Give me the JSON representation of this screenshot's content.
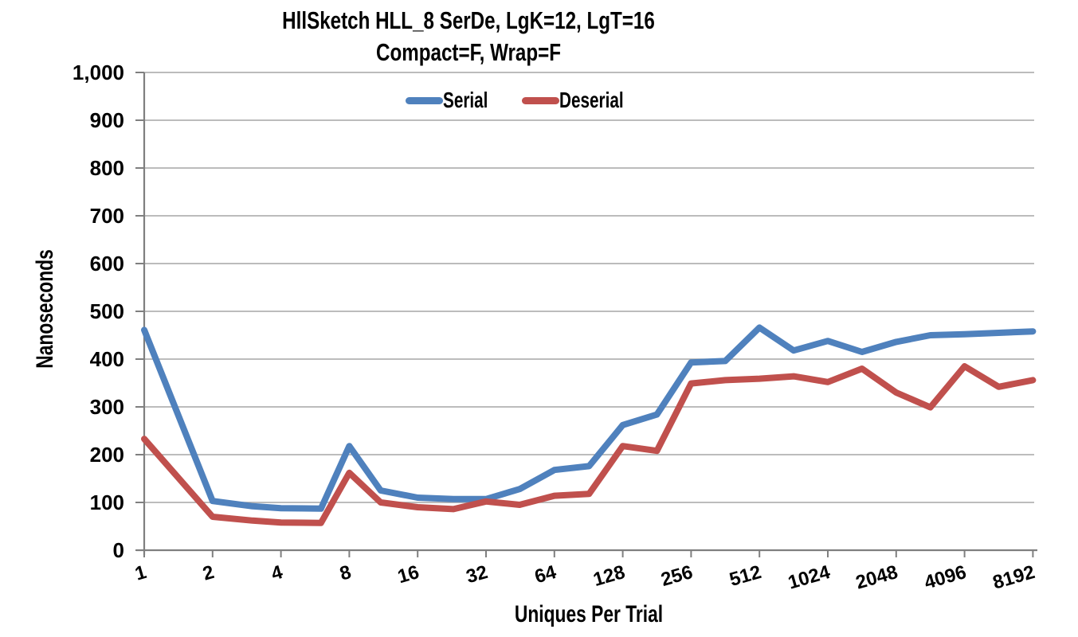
{
  "chart_data": {
    "type": "line",
    "title": "HllSketch HLL_8 SerDe, LgK=12, LgT=16",
    "subtitle": "Compact=F, Wrap=F",
    "xlabel": "Uniques Per Trial",
    "ylabel": "Nanoseconds",
    "x_scale": "log2",
    "grid": true,
    "legend_position": "top-center",
    "ylim": [
      0,
      1000
    ],
    "y_tick_step": 100,
    "y_tick_labels": [
      "0",
      "100",
      "200",
      "300",
      "400",
      "500",
      "600",
      "700",
      "800",
      "900",
      "1,000"
    ],
    "x_tick_labels": [
      "1",
      "2",
      "4",
      "8",
      "16",
      "32",
      "64",
      "128",
      "256",
      "512",
      "1024",
      "2048",
      "4096",
      "8192"
    ],
    "x": [
      1,
      2,
      3,
      4,
      6,
      8,
      11,
      16,
      23,
      32,
      45,
      64,
      91,
      128,
      181,
      256,
      362,
      512,
      724,
      1024,
      1448,
      2048,
      2896,
      4096,
      5793,
      8192
    ],
    "series": [
      {
        "name": "Serial",
        "color": "#4F81BD",
        "values": [
          461,
          103,
          92,
          88,
          87,
          218,
          125,
          110,
          107,
          107,
          128,
          168,
          176,
          262,
          284,
          393,
          396,
          466,
          418,
          438,
          415,
          436,
          450,
          452,
          455,
          458
        ]
      },
      {
        "name": "Deserial",
        "color": "#C0504D",
        "values": [
          233,
          70,
          62,
          58,
          57,
          162,
          100,
          90,
          86,
          102,
          95,
          114,
          118,
          218,
          208,
          349,
          356,
          359,
          364,
          352,
          380,
          330,
          299,
          385,
          342,
          356
        ]
      }
    ],
    "axis_color": "#7F7F7F",
    "gridline_color": "#A6A6A6"
  }
}
